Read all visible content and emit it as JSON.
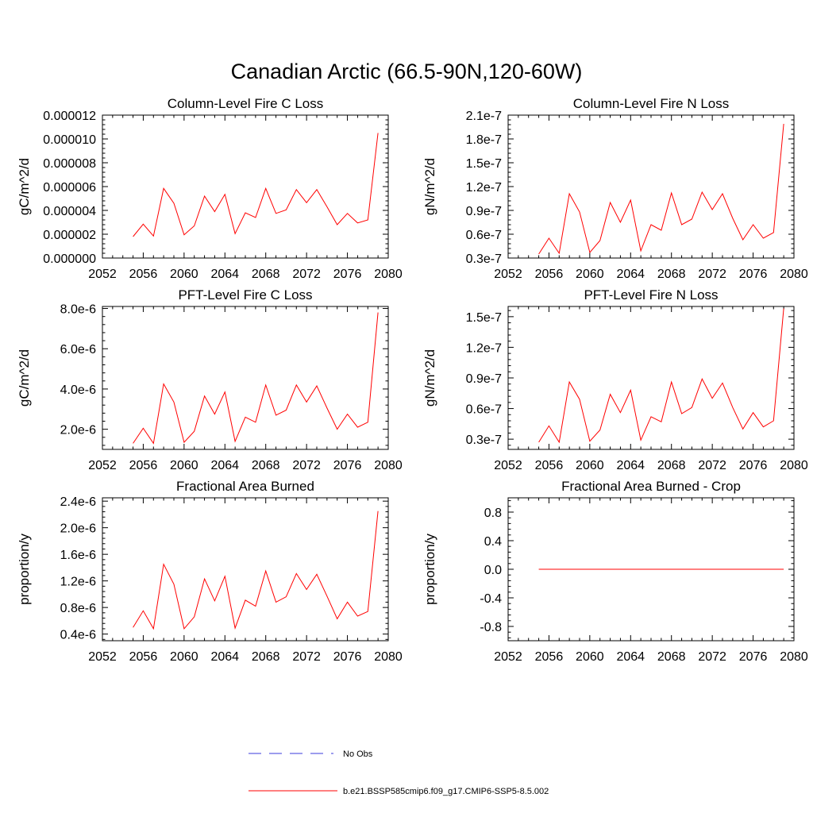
{
  "title": "Canadian Arctic (66.5-90N,120-60W)",
  "line_color": "#ff0000",
  "obs_line_color": "#3b3bdc",
  "legend": {
    "obs_label": "No Obs",
    "model_label": "b.e21.BSSP585cmip6.f09_g17.CMIP6-SSP5-8.5.002"
  },
  "chart_data": [
    {
      "type": "line",
      "title": "Column-Level Fire C Loss",
      "ylabel": "gC/m^2/d",
      "xlim": [
        2052,
        2080
      ],
      "ylim": [
        0,
        1.2e-05
      ],
      "xticks": [
        2052,
        2056,
        2060,
        2064,
        2068,
        2072,
        2076,
        2080
      ],
      "yticks": [
        0,
        2e-06,
        4e-06,
        6e-06,
        8e-06,
        1e-05,
        1.2e-05
      ],
      "yticklabels": [
        "0.000000",
        "0.000002",
        "0.000004",
        "0.000006",
        "0.000008",
        "0.000010",
        "0.000012"
      ],
      "x": [
        2055,
        2056,
        2057,
        2058,
        2059,
        2060,
        2061,
        2062,
        2063,
        2064,
        2065,
        2066,
        2067,
        2068,
        2069,
        2070,
        2071,
        2072,
        2073,
        2074,
        2075,
        2076,
        2077,
        2078,
        2079
      ],
      "series": [
        {
          "name": "b.e21.BSSP585cmip6.f09_g17.CMIP6-SSP5-8.5.002",
          "values": [
            1.8e-06,
            2.85e-06,
            1.85e-06,
            5.85e-06,
            4.6e-06,
            1.95e-06,
            2.7e-06,
            5.2e-06,
            3.9e-06,
            5.35e-06,
            2.05e-06,
            3.8e-06,
            3.4e-06,
            5.85e-06,
            3.75e-06,
            4.05e-06,
            5.75e-06,
            4.65e-06,
            5.75e-06,
            4.3e-06,
            2.8e-06,
            3.75e-06,
            2.95e-06,
            3.2e-06,
            1.05e-05
          ]
        }
      ]
    },
    {
      "type": "line",
      "title": "Column-Level Fire N Loss",
      "ylabel": "gN/m^2/d",
      "xlim": [
        2052,
        2080
      ],
      "ylim": [
        3e-08,
        2.1e-07
      ],
      "xticks": [
        2052,
        2056,
        2060,
        2064,
        2068,
        2072,
        2076,
        2080
      ],
      "yticks": [
        3e-08,
        6e-08,
        9e-08,
        1.2e-07,
        1.5e-07,
        1.8e-07,
        2.1e-07
      ],
      "yticklabels": [
        "0.3e-7",
        "0.6e-7",
        "0.9e-7",
        "1.2e-7",
        "1.5e-7",
        "1.8e-7",
        "2.1e-7"
      ],
      "x": [
        2055,
        2056,
        2057,
        2058,
        2059,
        2060,
        2061,
        2062,
        2063,
        2064,
        2065,
        2066,
        2067,
        2068,
        2069,
        2070,
        2071,
        2072,
        2073,
        2074,
        2075,
        2076,
        2077,
        2078,
        2079
      ],
      "series": [
        {
          "name": "b.e21.BSSP585cmip6.f09_g17.CMIP6-SSP5-8.5.002",
          "values": [
            3.5e-08,
            5.5e-08,
            3.6e-08,
            1.11e-07,
            8.8e-08,
            3.7e-08,
            5.2e-08,
            1e-07,
            7.5e-08,
            1.03e-07,
            3.9e-08,
            7.2e-08,
            6.5e-08,
            1.12e-07,
            7.2e-08,
            7.9e-08,
            1.13e-07,
            9.1e-08,
            1.11e-07,
            8e-08,
            5.3e-08,
            7.2e-08,
            5.5e-08,
            6.2e-08,
            1.99e-07
          ]
        }
      ]
    },
    {
      "type": "line",
      "title": "PFT-Level Fire C Loss",
      "ylabel": "gC/m^2/d",
      "xlim": [
        2052,
        2080
      ],
      "ylim": [
        1e-06,
        8.1e-06
      ],
      "xticks": [
        2052,
        2056,
        2060,
        2064,
        2068,
        2072,
        2076,
        2080
      ],
      "yticks": [
        2e-06,
        4e-06,
        6e-06,
        8e-06
      ],
      "yticklabels": [
        "2.0e-6",
        "4.0e-6",
        "6.0e-6",
        "8.0e-6"
      ],
      "x": [
        2055,
        2056,
        2057,
        2058,
        2059,
        2060,
        2061,
        2062,
        2063,
        2064,
        2065,
        2066,
        2067,
        2068,
        2069,
        2070,
        2071,
        2072,
        2073,
        2074,
        2075,
        2076,
        2077,
        2078,
        2079
      ],
      "series": [
        {
          "name": "b.e21.BSSP585cmip6.f09_g17.CMIP6-SSP5-8.5.002",
          "values": [
            1.3e-06,
            2.05e-06,
            1.3e-06,
            4.25e-06,
            3.35e-06,
            1.35e-06,
            1.9e-06,
            3.65e-06,
            2.75e-06,
            3.85e-06,
            1.4e-06,
            2.6e-06,
            2.35e-06,
            4.2e-06,
            2.7e-06,
            2.95e-06,
            4.2e-06,
            3.35e-06,
            4.15e-06,
            3.05e-06,
            2e-06,
            2.75e-06,
            2.1e-06,
            2.35e-06,
            7.8e-06
          ]
        }
      ]
    },
    {
      "type": "line",
      "title": "PFT-Level Fire N Loss",
      "ylabel": "gN/m^2/d",
      "xlim": [
        2052,
        2080
      ],
      "ylim": [
        2e-08,
        1.6e-07
      ],
      "xticks": [
        2052,
        2056,
        2060,
        2064,
        2068,
        2072,
        2076,
        2080
      ],
      "yticks": [
        3e-08,
        6e-08,
        9e-08,
        1.2e-07,
        1.5e-07
      ],
      "yticklabels": [
        "0.3e-7",
        "0.6e-7",
        "0.9e-7",
        "1.2e-7",
        "1.5e-7"
      ],
      "x": [
        2055,
        2056,
        2057,
        2058,
        2059,
        2060,
        2061,
        2062,
        2063,
        2064,
        2065,
        2066,
        2067,
        2068,
        2069,
        2070,
        2071,
        2072,
        2073,
        2074,
        2075,
        2076,
        2077,
        2078,
        2079
      ],
      "series": [
        {
          "name": "b.e21.BSSP585cmip6.f09_g17.CMIP6-SSP5-8.5.002",
          "values": [
            2.7e-08,
            4.3e-08,
            2.7e-08,
            8.6e-08,
            6.9e-08,
            2.8e-08,
            3.9e-08,
            7.4e-08,
            5.6e-08,
            7.8e-08,
            2.9e-08,
            5.2e-08,
            4.7e-08,
            8.6e-08,
            5.5e-08,
            6.1e-08,
            8.9e-08,
            7e-08,
            8.5e-08,
            6.1e-08,
            4e-08,
            5.6e-08,
            4.2e-08,
            4.8e-08,
            1.58e-07
          ]
        }
      ]
    },
    {
      "type": "line",
      "title": "Fractional Area Burned",
      "ylabel": "proportion/y",
      "xlim": [
        2052,
        2080
      ],
      "ylim": [
        3e-07,
        2.45e-06
      ],
      "xticks": [
        2052,
        2056,
        2060,
        2064,
        2068,
        2072,
        2076,
        2080
      ],
      "yticks": [
        4e-07,
        8e-07,
        1.2e-06,
        1.6e-06,
        2e-06,
        2.4e-06
      ],
      "yticklabels": [
        "0.4e-6",
        "0.8e-6",
        "1.2e-6",
        "1.6e-6",
        "2.0e-6",
        "2.4e-6"
      ],
      "x": [
        2055,
        2056,
        2057,
        2058,
        2059,
        2060,
        2061,
        2062,
        2063,
        2064,
        2065,
        2066,
        2067,
        2068,
        2069,
        2070,
        2071,
        2072,
        2073,
        2074,
        2075,
        2076,
        2077,
        2078,
        2079
      ],
      "series": [
        {
          "name": "b.e21.BSSP585cmip6.f09_g17.CMIP6-SSP5-8.5.002",
          "values": [
            5e-07,
            7.5e-07,
            4.8e-07,
            1.45e-06,
            1.15e-06,
            4.8e-07,
            6.6e-07,
            1.23e-06,
            9e-07,
            1.27e-06,
            4.9e-07,
            9.1e-07,
            8.2e-07,
            1.35e-06,
            8.8e-07,
            9.6e-07,
            1.31e-06,
            1.07e-06,
            1.3e-06,
            9.7e-07,
            6.3e-07,
            8.8e-07,
            6.7e-07,
            7.4e-07,
            2.25e-06
          ]
        }
      ]
    },
    {
      "type": "line",
      "title": "Fractional Area Burned - Crop",
      "ylabel": "proportion/y",
      "xlim": [
        2052,
        2080
      ],
      "ylim": [
        -1,
        1
      ],
      "xticks": [
        2052,
        2056,
        2060,
        2064,
        2068,
        2072,
        2076,
        2080
      ],
      "yticks": [
        -0.8,
        -0.4,
        0,
        0.4,
        0.8
      ],
      "yticklabels": [
        "-0.8",
        "-0.4",
        "0.0",
        "0.4",
        "0.8"
      ],
      "x": [
        2055,
        2056,
        2057,
        2058,
        2059,
        2060,
        2061,
        2062,
        2063,
        2064,
        2065,
        2066,
        2067,
        2068,
        2069,
        2070,
        2071,
        2072,
        2073,
        2074,
        2075,
        2076,
        2077,
        2078,
        2079
      ],
      "series": [
        {
          "name": "b.e21.BSSP585cmip6.f09_g17.CMIP6-SSP5-8.5.002",
          "values": [
            0,
            0,
            0,
            0,
            0,
            0,
            0,
            0,
            0,
            0,
            0,
            0,
            0,
            0,
            0,
            0,
            0,
            0,
            0,
            0,
            0,
            0,
            0,
            0,
            0
          ]
        }
      ]
    }
  ]
}
